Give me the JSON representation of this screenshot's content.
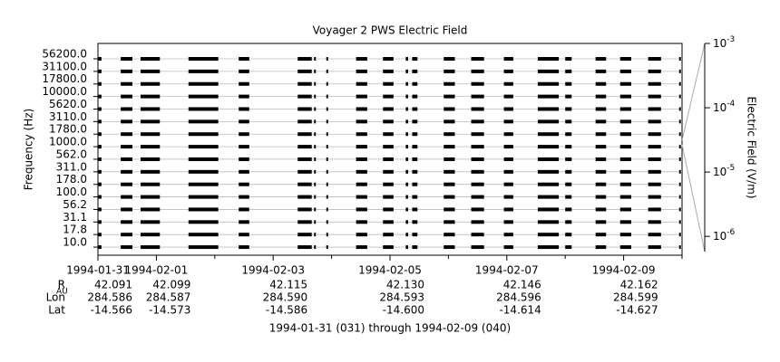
{
  "chart_data": {
    "type": "channel-strip",
    "title": "Voyager 2 PWS Electric Field",
    "subtitle": "1994-01-31 (031) through 1994-02-09 (040)",
    "ylabel": "Frequency (Hz)",
    "channels": [
      "56200.0",
      "31100.0",
      "17800.0",
      "10000.0",
      "5620.0",
      "3110.0",
      "1780.0",
      "1000.0",
      "562.0",
      "311.0",
      "178.0",
      "100.0",
      "56.2",
      "31.1",
      "17.8",
      "10.0"
    ],
    "xlim": [
      0,
      10
    ],
    "xticks": [
      {
        "value": 0,
        "label": "1994-01-31"
      },
      {
        "value": 1,
        "label": "1994-02-01"
      },
      {
        "value": 3,
        "label": "1994-02-03"
      },
      {
        "value": 5,
        "label": "1994-02-05"
      },
      {
        "value": 7,
        "label": "1994-02-07"
      },
      {
        "value": 9,
        "label": "1994-02-09"
      }
    ],
    "xminorticks": [
      2,
      4,
      6,
      8,
      10
    ],
    "segments": [
      [
        0,
        0.06
      ],
      [
        0.39,
        0.59
      ],
      [
        0.73,
        1.06
      ],
      [
        1.55,
        2.06
      ],
      [
        2.41,
        2.59
      ],
      [
        3.42,
        3.66
      ],
      [
        3.7,
        3.73
      ],
      [
        3.91,
        3.94
      ],
      [
        4.42,
        4.61
      ],
      [
        4.88,
        5.06
      ],
      [
        5.27,
        5.31
      ],
      [
        5.38,
        5.47
      ],
      [
        5.92,
        6.11
      ],
      [
        6.39,
        6.61
      ],
      [
        6.95,
        7.11
      ],
      [
        7.53,
        7.89
      ],
      [
        8.0,
        8.11
      ],
      [
        8.52,
        8.7
      ],
      [
        8.94,
        9.13
      ],
      [
        9.42,
        9.64
      ],
      [
        9.95,
        9.98
      ]
    ],
    "color": "#000000",
    "ephemeris": [
      {
        "name": "R",
        "sub": "AU",
        "values": [
          "42.091",
          "42.099",
          "42.115",
          "42.130",
          "42.146",
          "42.162"
        ]
      },
      {
        "name": "Lon",
        "values": [
          "284.586",
          "284.587",
          "284.590",
          "284.593",
          "284.596",
          "284.599"
        ]
      },
      {
        "name": "Lat",
        "values": [
          "-14.566",
          "-14.573",
          "-14.586",
          "-14.600",
          "-14.614",
          "-14.627"
        ]
      }
    ],
    "colorbar": {
      "label": "Electric Field (V/m)",
      "log": true,
      "ylim": [
        5.8e-07,
        0.001
      ],
      "yticks": [
        {
          "value": 0.001,
          "label": "10",
          "exponent": "-3"
        },
        {
          "value": 0.0001,
          "label": "10",
          "exponent": "-4"
        },
        {
          "value": 1e-05,
          "label": "10",
          "exponent": "-5"
        },
        {
          "value": 1e-06,
          "label": "10",
          "exponent": "-6"
        }
      ]
    }
  }
}
